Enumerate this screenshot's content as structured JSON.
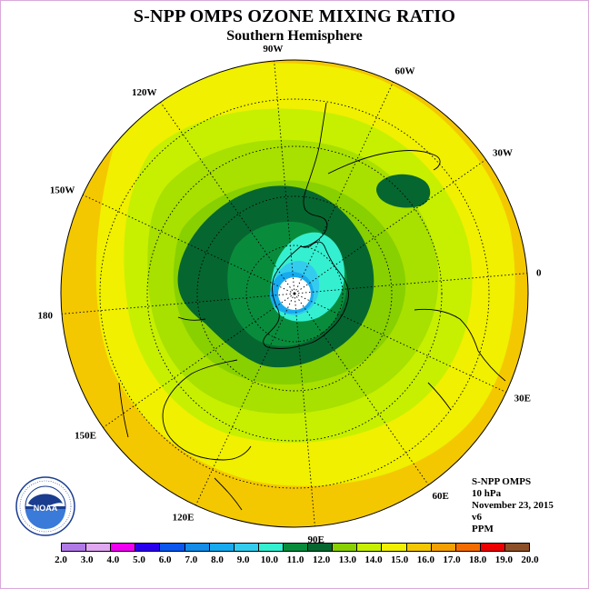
{
  "title": "S-NPP OMPS OZONE MIXING RATIO",
  "subtitle": "Southern Hemisphere",
  "map": {
    "projection": "south-polar-stereographic",
    "meridian_labels": [
      "90W",
      "60W",
      "30W",
      "0",
      "30E",
      "60E",
      "90E",
      "120E",
      "150E",
      "180",
      "150W",
      "120W"
    ]
  },
  "info": {
    "instrument": "S-NPP OMPS",
    "level": "10 hPa",
    "date": "November 23, 2015",
    "version": "v6",
    "units": "PPM"
  },
  "logo": {
    "text": "NOAA",
    "ring_text": "NATIONAL OCEANIC AND ATMOSPHERIC ADMINISTRATION · U.S. DEPARTMENT OF COMMERCE"
  },
  "colorbar": {
    "ticks": [
      "2.0",
      "3.0",
      "4.0",
      "5.0",
      "6.0",
      "7.0",
      "8.0",
      "9.0",
      "10.0",
      "11.0",
      "12.0",
      "13.0",
      "14.0",
      "15.0",
      "16.0",
      "17.0",
      "18.0",
      "19.0",
      "20.0"
    ],
    "colors": [
      "#b07ae6",
      "#e0a8f0",
      "#f000f0",
      "#2800ee",
      "#0a56ee",
      "#148ce8",
      "#18aaee",
      "#34ccee",
      "#34f0d0",
      "#088c3c",
      "#066630",
      "#88d000",
      "#c6f000",
      "#f0f000",
      "#f4c800",
      "#f4a000",
      "#f46c00",
      "#ec0000",
      "#8c5028"
    ]
  }
}
